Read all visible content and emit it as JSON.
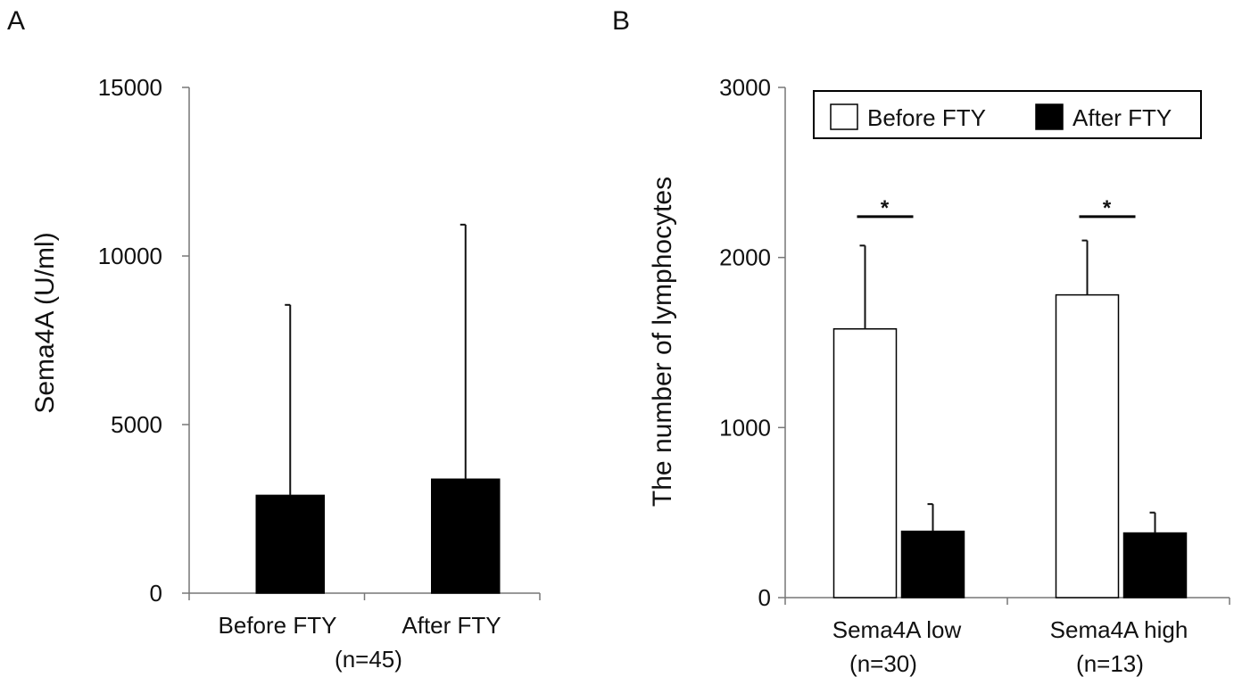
{
  "chart_data": [
    {
      "panel": "A",
      "type": "bar",
      "ylabel": "Sema4A  (U/ml)",
      "ylim": [
        0,
        15000
      ],
      "yticks": [
        "0",
        "5000",
        "10000",
        "15000"
      ],
      "categories": [
        "Before FTY",
        "After FTY"
      ],
      "group_caption": "(n=45)",
      "series": [
        {
          "values": [
            2900,
            3380
          ],
          "error": [
            5650,
            7550
          ],
          "color": "#000000"
        }
      ]
    },
    {
      "panel": "B",
      "type": "bar",
      "ylabel": "The number of lymphocytes",
      "ylim": [
        0,
        3000
      ],
      "yticks": [
        "0",
        "1000",
        "2000",
        "3000"
      ],
      "categories": [
        "Sema4A low",
        "Sema4A high"
      ],
      "category_captions": [
        "(n=30)",
        "(n=13)"
      ],
      "legend_position": "top",
      "series": [
        {
          "name": "Before FTY",
          "values": [
            1580,
            1780
          ],
          "error": [
            490,
            320
          ],
          "color": "#ffffff"
        },
        {
          "name": "After FTY",
          "values": [
            390,
            380
          ],
          "error": [
            160,
            120
          ],
          "color": "#000000"
        }
      ],
      "annotations": [
        {
          "text": "*",
          "category_index": 0,
          "y": 2240
        },
        {
          "text": "*",
          "category_index": 1,
          "y": 2240
        }
      ]
    }
  ]
}
